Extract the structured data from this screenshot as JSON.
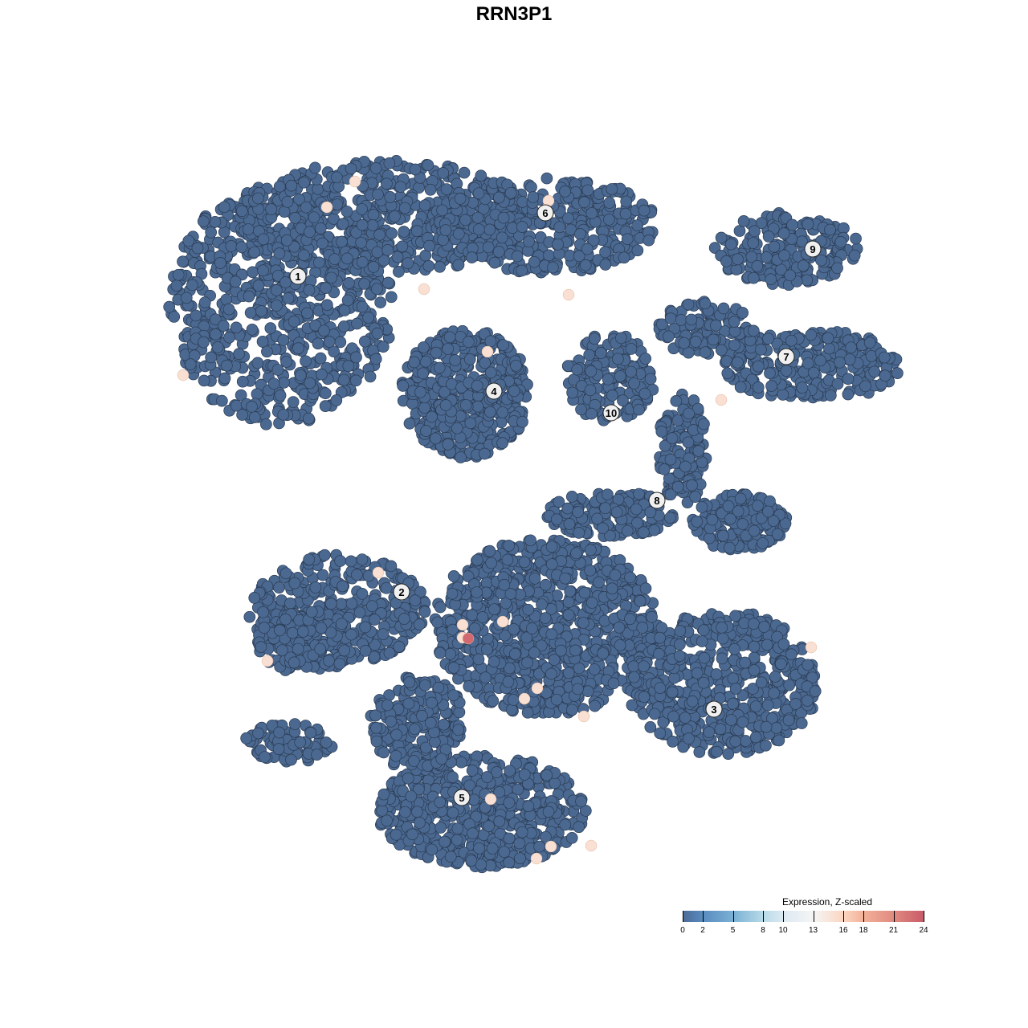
{
  "chart_data": {
    "type": "scatter",
    "title": "RRN3P1",
    "grid": false,
    "axes_visible": false,
    "point_fill_default": "#4a6890",
    "point_stroke": "#2b3b52",
    "cluster_labels": [
      {
        "label": "1",
        "x": -26.9,
        "y": 29.6
      },
      {
        "label": "2",
        "x": -14.0,
        "y": -9.7
      },
      {
        "label": "3",
        "x": 24.9,
        "y": -24.3
      },
      {
        "label": "4",
        "x": -2.5,
        "y": 15.3
      },
      {
        "label": "5",
        "x": -6.5,
        "y": -35.3
      },
      {
        "label": "6",
        "x": 3.9,
        "y": 37.5
      },
      {
        "label": "7",
        "x": 33.9,
        "y": 19.6
      },
      {
        "label": "8",
        "x": 17.8,
        "y": 1.7
      },
      {
        "label": "9",
        "x": 37.2,
        "y": 33.0
      },
      {
        "label": "10",
        "x": 12.1,
        "y": 12.6
      }
    ],
    "expressing_cells": [
      {
        "x": -19.8,
        "y": 41.4,
        "value": 15
      },
      {
        "x": -23.3,
        "y": 38.2,
        "value": 15
      },
      {
        "x": 4.3,
        "y": 39.0,
        "value": 15
      },
      {
        "x": -11.2,
        "y": 28.0,
        "value": 15
      },
      {
        "x": 6.8,
        "y": 27.3,
        "value": 15
      },
      {
        "x": -3.3,
        "y": 20.2,
        "value": 15
      },
      {
        "x": -41.2,
        "y": 17.3,
        "value": 15
      },
      {
        "x": 25.8,
        "y": 14.2,
        "value": 15
      },
      {
        "x": -16.9,
        "y": -7.3,
        "value": 15
      },
      {
        "x": -6.4,
        "y": -13.8,
        "value": 15
      },
      {
        "x": -1.4,
        "y": -13.4,
        "value": 15
      },
      {
        "x": -6.4,
        "y": -15.4,
        "value": 15
      },
      {
        "x": -5.7,
        "y": -15.5,
        "value": 23
      },
      {
        "x": -30.7,
        "y": -18.3,
        "value": 15
      },
      {
        "x": 2.9,
        "y": -21.7,
        "value": 15
      },
      {
        "x": 1.3,
        "y": -23.0,
        "value": 15
      },
      {
        "x": 8.7,
        "y": -25.2,
        "value": 15
      },
      {
        "x": 37.0,
        "y": -16.6,
        "value": 15
      },
      {
        "x": -2.9,
        "y": -35.5,
        "value": 15
      },
      {
        "x": 4.6,
        "y": -41.4,
        "value": 15
      },
      {
        "x": 9.6,
        "y": -41.3,
        "value": 15
      },
      {
        "x": 2.8,
        "y": -42.9,
        "value": 15
      }
    ],
    "legend": {
      "title": "Expression, Z-scaled",
      "placement": "bottom-right",
      "ticks": [
        0,
        2,
        5,
        8,
        10,
        13,
        16,
        18,
        21,
        24
      ],
      "range": [
        0,
        24
      ],
      "colors": [
        "#4b6a96",
        "#5a8cc0",
        "#7ab0d4",
        "#b8dbe8",
        "#dde9f2",
        "#f5f5f5",
        "#fbd5c0",
        "#f2b098",
        "#e08a80",
        "#c85a68"
      ]
    }
  }
}
